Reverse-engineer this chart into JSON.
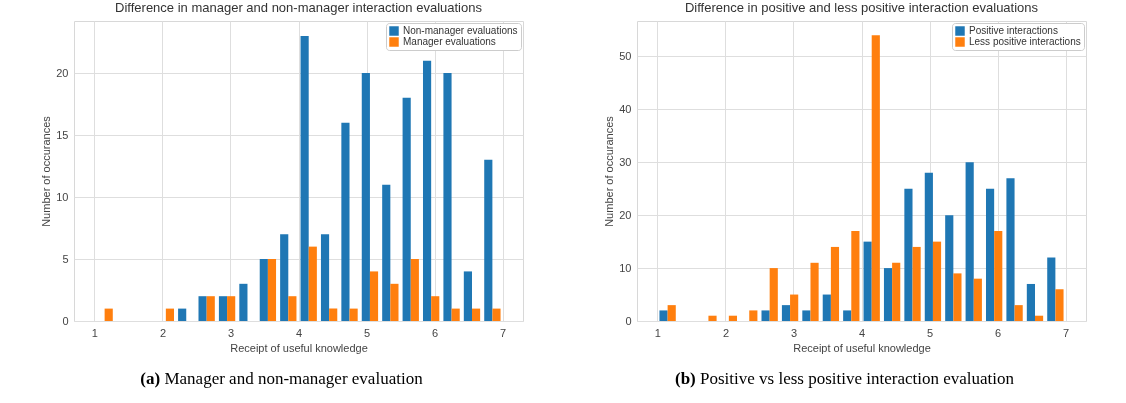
{
  "chart_data": [
    {
      "type": "histogram",
      "title": "Difference in manager and non-manager interaction evaluations",
      "xlabel": "Receipt of useful knowledge",
      "ylabel": "Number of occurances",
      "bins": [
        1,
        1.3,
        1.6,
        1.9,
        2.2,
        2.5,
        2.8,
        3.1,
        3.4,
        3.7,
        4.0,
        4.3,
        4.6,
        4.9,
        5.2,
        5.5,
        5.8,
        6.1,
        6.4,
        6.7,
        7.0
      ],
      "series": [
        {
          "name": "Non-manager evaluations",
          "color": "#1f77b4",
          "values": [
            0,
            0,
            0,
            0,
            1,
            2,
            2,
            3,
            5,
            7,
            23,
            7,
            16,
            20,
            11,
            18,
            21,
            20,
            4,
            13
          ]
        },
        {
          "name": "Manager evaluations",
          "color": "#ff7f0e",
          "values": [
            1,
            0,
            0,
            1,
            0,
            2,
            2,
            0,
            5,
            2,
            6,
            1,
            1,
            4,
            3,
            5,
            2,
            1,
            1,
            1
          ]
        }
      ],
      "xlim": [
        0.7,
        7.3
      ],
      "xticks": [
        1,
        2,
        3,
        4,
        5,
        6,
        7
      ],
      "ylim": [
        0,
        24.2
      ],
      "yticks": [
        0,
        5,
        10,
        15,
        20
      ],
      "grid": true,
      "legend": "top right",
      "annotations": [
        "(a) Manager and non-manager evaluation"
      ]
    },
    {
      "type": "histogram",
      "title": "Difference in positive and less positive interaction evaluations",
      "xlabel": "Receipt of useful knowledge",
      "ylabel": "Number of occurances",
      "bins": [
        1,
        1.3,
        1.6,
        1.9,
        2.2,
        2.5,
        2.8,
        3.1,
        3.4,
        3.7,
        4.0,
        4.3,
        4.6,
        4.9,
        5.2,
        5.5,
        5.8,
        6.1,
        6.4,
        6.7,
        7.0
      ],
      "series": [
        {
          "name": "Positive interactions",
          "color": "#1f77b4",
          "values": [
            2,
            0,
            0,
            0,
            0,
            2,
            3,
            2,
            5,
            2,
            15,
            10,
            25,
            28,
            20,
            30,
            25,
            27,
            7,
            12
          ]
        },
        {
          "name": "Less positive interactions",
          "color": "#ff7f0e",
          "values": [
            3,
            0,
            1,
            1,
            2,
            10,
            5,
            11,
            14,
            17,
            54,
            11,
            14,
            15,
            9,
            8,
            17,
            3,
            1,
            6
          ]
        }
      ],
      "xlim": [
        0.7,
        7.3
      ],
      "xticks": [
        1,
        2,
        3,
        4,
        5,
        6,
        7
      ],
      "ylim": [
        0,
        56.7
      ],
      "yticks": [
        0,
        10,
        20,
        30,
        40,
        50
      ],
      "grid": true,
      "legend": "top right",
      "annotations": [
        "(b) Positive vs less positive interaction evaluation"
      ]
    }
  ]
}
